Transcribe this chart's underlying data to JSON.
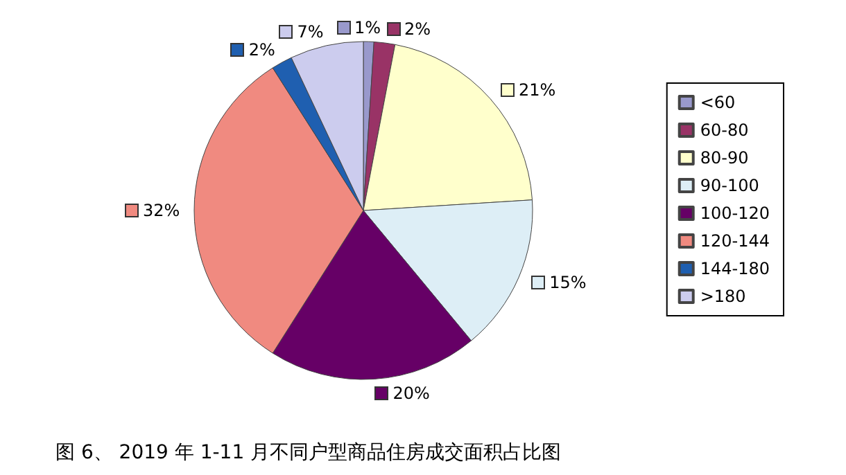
{
  "chart_data": {
    "type": "pie",
    "title": "图 6、 2019 年 1-11 月不同户型商品住房成交面积占比图",
    "categories": [
      "<60",
      "60-80",
      "80-90",
      "90-100",
      "100-120",
      "120-144",
      "144-180",
      ">180"
    ],
    "values": [
      1,
      2,
      21,
      15,
      20,
      32,
      2,
      7
    ],
    "value_labels": [
      "1%",
      "2%",
      "21%",
      "15%",
      "20%",
      "32%",
      "2%",
      "7%"
    ],
    "colors": [
      "#9999cc",
      "#993366",
      "#ffffcc",
      "#ddeef6",
      "#660066",
      "#f08a80",
      "#1f5fb0",
      "#ccccee"
    ],
    "legend": "right"
  }
}
